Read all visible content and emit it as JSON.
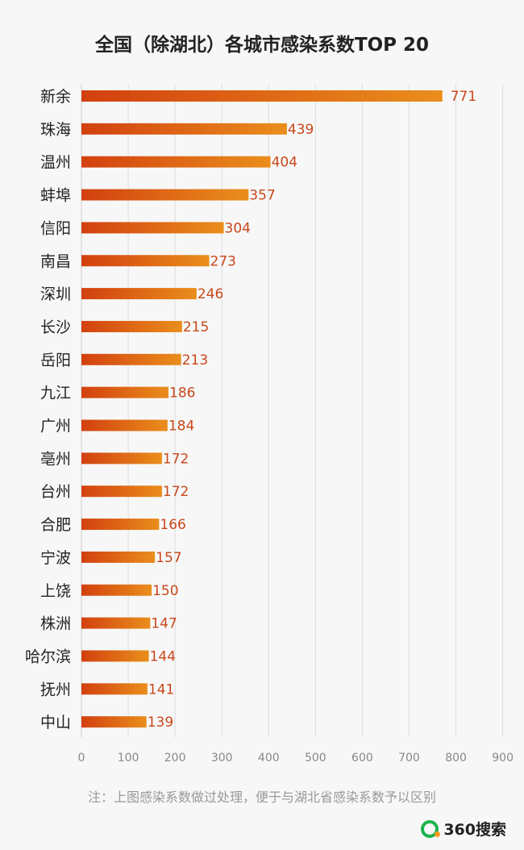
{
  "title": "全国（除湖北）各城市感染系数TOP 20",
  "footnote": "注：上图感染系数做过处理，便于与湖北省感染系数予以区别",
  "brand": "360搜索",
  "chart_data": {
    "type": "bar",
    "orientation": "horizontal",
    "categories": [
      "新余",
      "珠海",
      "温州",
      "蚌埠",
      "信阳",
      "南昌",
      "深圳",
      "长沙",
      "岳阳",
      "九江",
      "广州",
      "亳州",
      "台州",
      "合肥",
      "宁波",
      "上饶",
      "株洲",
      "哈尔滨",
      "抚州",
      "中山"
    ],
    "values": [
      771,
      439,
      404,
      357,
      304,
      273,
      246,
      215,
      213,
      186,
      184,
      172,
      172,
      166,
      157,
      150,
      147,
      144,
      141,
      139
    ],
    "xlim": [
      0,
      900
    ],
    "xticks": [
      0,
      100,
      200,
      300,
      400,
      500,
      600,
      700,
      800,
      900
    ],
    "grid": "vertical",
    "bar_color_start": "#d2400f",
    "bar_color_end": "#ea8e1c",
    "label_color": "#c9471b"
  }
}
